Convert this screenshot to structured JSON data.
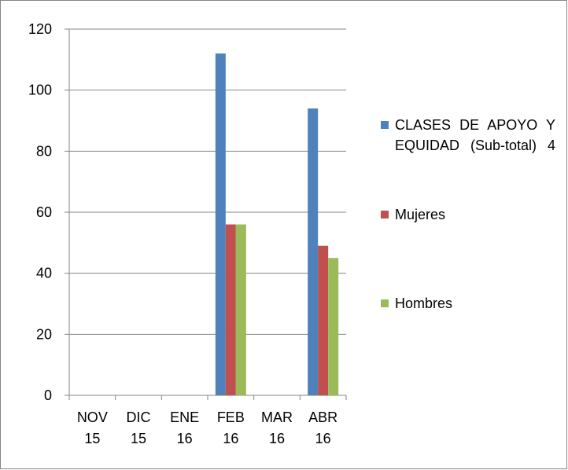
{
  "chart_data": {
    "type": "bar",
    "categories": [
      "NOV 15",
      "DIC 15",
      "ENE 16",
      "FEB 16",
      "MAR 16",
      "ABR 16"
    ],
    "series": [
      {
        "name": "CLASES DE APOYO Y EQUIDAD (Sub-total) 4",
        "color": "#4f81bd",
        "values": [
          0,
          0,
          0,
          112,
          0,
          94
        ]
      },
      {
        "name": "Mujeres",
        "color": "#c0504d",
        "values": [
          0,
          0,
          0,
          56,
          0,
          49
        ]
      },
      {
        "name": "Hombres",
        "color": "#9bbb59",
        "values": [
          0,
          0,
          0,
          56,
          0,
          45
        ]
      }
    ],
    "ylim": [
      0,
      120
    ],
    "yticks": [
      0,
      20,
      40,
      60,
      80,
      100,
      120
    ],
    "grid": true,
    "legend": "right"
  }
}
